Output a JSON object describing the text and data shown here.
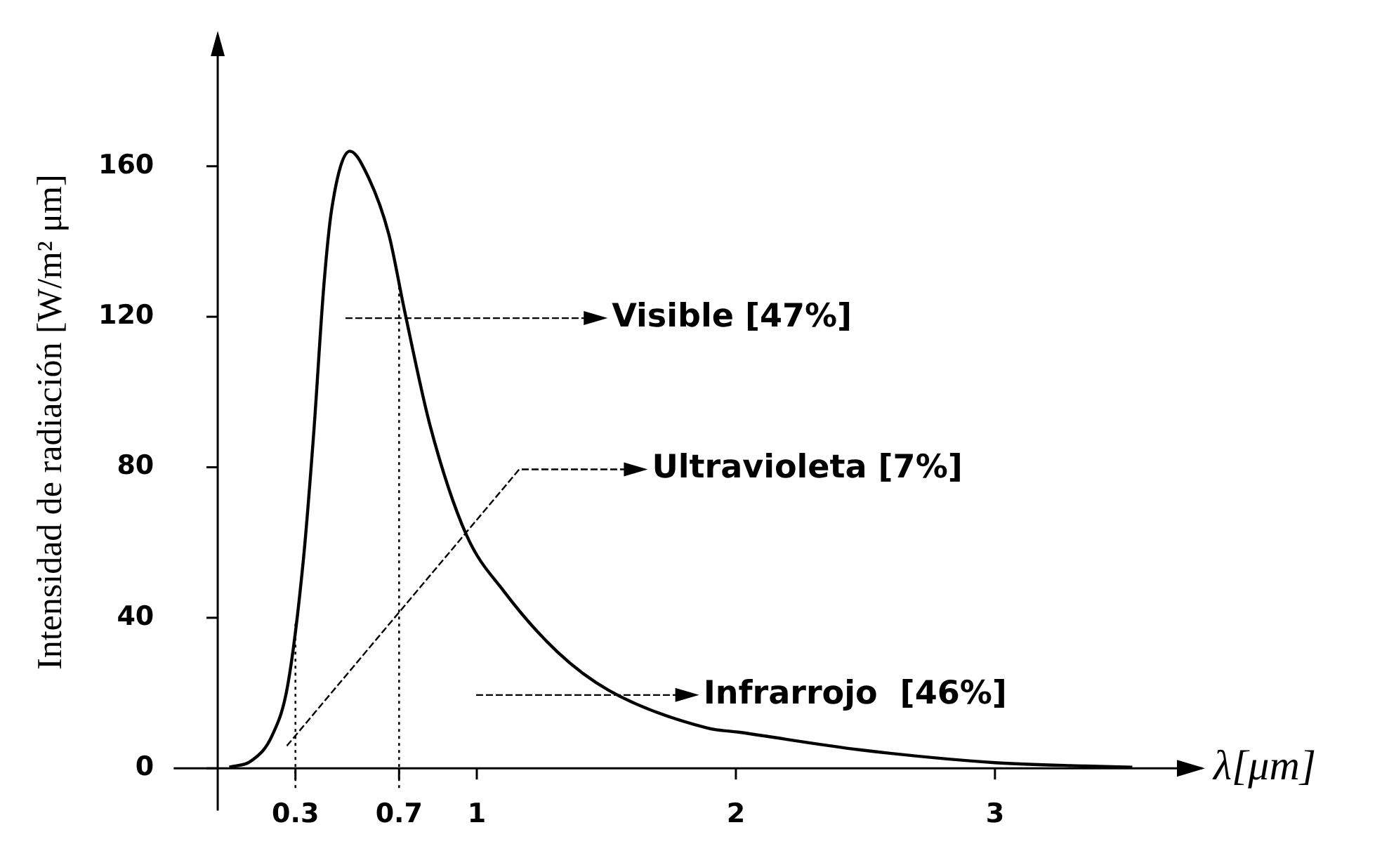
{
  "chart_data": {
    "type": "line",
    "xlabel": "λ[μm]",
    "ylabel": "Intensidad de radiación [W/m² μm]",
    "x": [
      0.045,
      0.13,
      0.21,
      0.27,
      0.33,
      0.37,
      0.41,
      0.44,
      0.51,
      0.575,
      0.66,
      0.72,
      0.82,
      0.96,
      1.105,
      1.31,
      1.51,
      1.89,
      2.01,
      2.48,
      3.0,
      3.35,
      3.53
    ],
    "series": [
      {
        "color": "#000000",
        "values": [
          0.3,
          2,
          8.7,
          22,
          55,
          88.6,
          128.6,
          148.6,
          164,
          158,
          142,
          122,
          91,
          62,
          47,
          31,
          20.7,
          10.7,
          9.6,
          4.9,
          1.5,
          0.6,
          0.3
        ]
      }
    ],
    "xlim": [
      -0.17,
      3.8
    ],
    "ylim": [
      -6,
      190
    ],
    "xticks": [
      0.3,
      0.7,
      1,
      2,
      3
    ],
    "yticks": [
      0,
      40,
      80,
      120,
      160
    ],
    "grid": false,
    "legend": false,
    "marker": "none",
    "line_style": "solid",
    "ref_lines": [
      {
        "axis": "x",
        "value": 0.3,
        "line_style": "dotted",
        "color": "#000000"
      },
      {
        "axis": "x",
        "value": 0.7,
        "line_style": "dotted",
        "color": "#000000"
      }
    ],
    "annotations": [
      "Visible [47%]",
      "Ultravioleta [7%]",
      "Infrarrojo  [46%]"
    ]
  }
}
